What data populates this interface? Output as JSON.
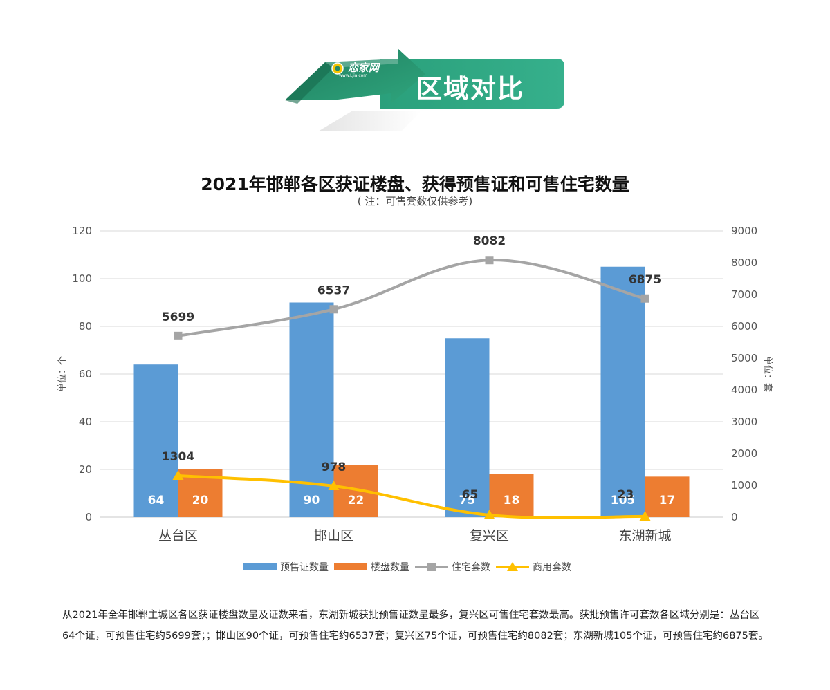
{
  "banner": {
    "title": "区域对比",
    "logo_text": "恋家网",
    "logo_url": "www.Ljia.com"
  },
  "chart_data": {
    "type": "bar",
    "title": "2021年邯郸各区获证楼盘、获得预售证和可售住宅数量",
    "subtitle": "( 注：可售套数仅供参考)",
    "categories": [
      "丛台区",
      "邯山区",
      "复兴区",
      "东湖新城"
    ],
    "ylabel_left": "单位：个",
    "ylabel_right": "单位：套",
    "ylim_left": [
      0,
      120
    ],
    "ylim_right": [
      0,
      9000
    ],
    "yticks_left": [
      0,
      20,
      40,
      60,
      80,
      100,
      120
    ],
    "yticks_right": [
      0,
      1000,
      2000,
      3000,
      4000,
      5000,
      6000,
      7000,
      8000,
      9000
    ],
    "grid": true,
    "legend_position": "bottom",
    "series": [
      {
        "name": "预售证数量",
        "kind": "bar",
        "axis": "left",
        "color": "#5B9BD5",
        "values": [
          64,
          90,
          75,
          105
        ]
      },
      {
        "name": "楼盘数量",
        "kind": "bar",
        "axis": "left",
        "color": "#ED7D31",
        "values": [
          20,
          22,
          18,
          17
        ]
      },
      {
        "name": "住宅套数",
        "kind": "line",
        "axis": "right",
        "color": "#A5A5A5",
        "marker": "square",
        "values": [
          5699,
          6537,
          8082,
          6875
        ]
      },
      {
        "name": "商用套数",
        "kind": "line",
        "axis": "right",
        "color": "#FFC000",
        "marker": "triangle",
        "values": [
          1304,
          978,
          65,
          23
        ]
      }
    ]
  },
  "summary": "从2021年全年邯郸主城区各区获证楼盘数量及证数来看，东湖新城获批预售证数量最多，复兴区可售住宅套数最高。获批预售许可套数各区域分别是：丛台区64个证，可预售住宅约5699套；；邯山区90个证，可预售住宅约6537套；复兴区75个证，可预售住宅约8082套；东湖新城105个证，可预售住宅约6875套。"
}
